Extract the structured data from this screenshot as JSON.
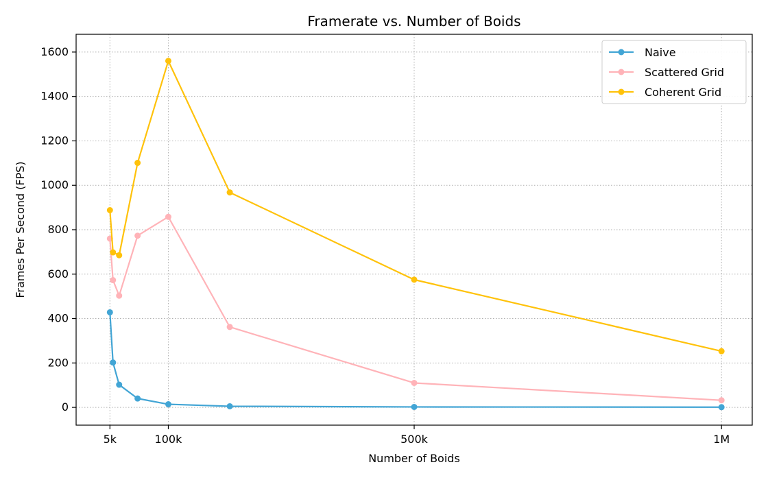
{
  "chart_data": {
    "type": "line",
    "title": "Framerate vs. Number of Boids",
    "xlabel": "Number of Boids",
    "ylabel": "Frames Per Second (FPS)",
    "xlim": [
      -50000,
      1050000
    ],
    "ylim": [
      -80,
      1680
    ],
    "grid": true,
    "legend_position": "top-right",
    "x_ticks": [
      {
        "value": 5000,
        "label": "5k"
      },
      {
        "value": 100000,
        "label": "100k"
      },
      {
        "value": 500000,
        "label": "500k"
      },
      {
        "value": 1000000,
        "label": "1M"
      }
    ],
    "y_ticks": [
      {
        "value": 0,
        "label": "0"
      },
      {
        "value": 200,
        "label": "200"
      },
      {
        "value": 400,
        "label": "400"
      },
      {
        "value": 600,
        "label": "600"
      },
      {
        "value": 800,
        "label": "800"
      },
      {
        "value": 1000,
        "label": "1000"
      },
      {
        "value": 1200,
        "label": "1200"
      },
      {
        "value": 1400,
        "label": "1400"
      },
      {
        "value": 1600,
        "label": "1600"
      }
    ],
    "x": [
      5000,
      10000,
      20000,
      50000,
      100000,
      200000,
      500000,
      1000000
    ],
    "series": [
      {
        "name": "Naive",
        "color": "#42A5D5",
        "values": [
          428,
          202,
          102,
          40,
          14,
          5,
          2,
          1
        ]
      },
      {
        "name": "Scattered Grid",
        "color": "#FFB3B8",
        "values": [
          760,
          573,
          503,
          773,
          858,
          362,
          110,
          32
        ]
      },
      {
        "name": "Coherent Grid",
        "color": "#FFC20A",
        "values": [
          888,
          698,
          685,
          1101,
          1560,
          968,
          575,
          253
        ]
      }
    ]
  }
}
